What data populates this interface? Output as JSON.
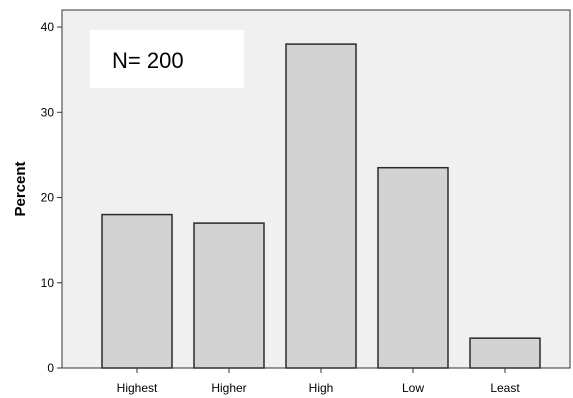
{
  "chart_data": {
    "type": "bar",
    "categories": [
      "Highest",
      "Higher",
      "High",
      "Low",
      "Least"
    ],
    "values": [
      18,
      17,
      38,
      23.5,
      3.5
    ],
    "ylabel": "Percent",
    "xlabel": "",
    "ylim": [
      0,
      42
    ],
    "yticks": [
      0,
      10,
      20,
      30,
      40
    ],
    "annotation": "N= 200",
    "grid": false,
    "legend": "none",
    "colors": {
      "bar_fill": "#d3d3d3",
      "bar_stroke": "#2b2b2b",
      "plot_background": "#f0f0f0",
      "annotation_background": "#ffffff"
    }
  }
}
